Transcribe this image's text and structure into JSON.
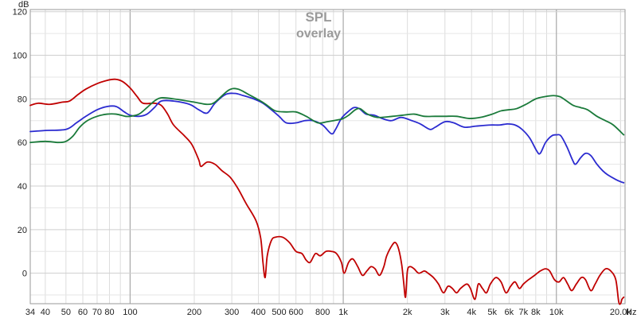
{
  "chart_data": {
    "type": "line",
    "title": "SPL",
    "subtitle": "overlay",
    "xlabel": "Hz",
    "ylabel": "dB",
    "x_scale": "log",
    "xlim": [
      34,
      21000
    ],
    "ylim": [
      -14,
      121
    ],
    "grid": true,
    "legend": "none",
    "x_tick_labels": [
      {
        "x": 34,
        "label": "34"
      },
      {
        "x": 40,
        "label": "40"
      },
      {
        "x": 50,
        "label": "50"
      },
      {
        "x": 60,
        "label": "60"
      },
      {
        "x": 70,
        "label": "70"
      },
      {
        "x": 80,
        "label": "80"
      },
      {
        "x": 100,
        "label": "100"
      },
      {
        "x": 200,
        "label": "200"
      },
      {
        "x": 300,
        "label": "300"
      },
      {
        "x": 400,
        "label": "400"
      },
      {
        "x": 500,
        "label": "500"
      },
      {
        "x": 600,
        "label": "600"
      },
      {
        "x": 800,
        "label": "800"
      },
      {
        "x": 1000,
        "label": "1k"
      },
      {
        "x": 2000,
        "label": "2k"
      },
      {
        "x": 3000,
        "label": "3k"
      },
      {
        "x": 4000,
        "label": "4k"
      },
      {
        "x": 5000,
        "label": "5k"
      },
      {
        "x": 6000,
        "label": "6k"
      },
      {
        "x": 7000,
        "label": "7k"
      },
      {
        "x": 8000,
        "label": "8k"
      },
      {
        "x": 10000,
        "label": "10k"
      },
      {
        "x": 20000,
        "label": "20.0k"
      }
    ],
    "y_ticks": [
      0,
      20,
      40,
      60,
      80,
      100,
      120
    ],
    "series": [
      {
        "color": "#c00000",
        "points": [
          [
            34,
            77
          ],
          [
            37,
            78
          ],
          [
            42,
            77.5
          ],
          [
            48,
            78.5
          ],
          [
            52,
            79
          ],
          [
            57,
            82
          ],
          [
            62,
            84.5
          ],
          [
            70,
            87
          ],
          [
            78,
            88.5
          ],
          [
            85,
            89
          ],
          [
            92,
            88
          ],
          [
            100,
            85
          ],
          [
            108,
            81
          ],
          [
            115,
            78
          ],
          [
            130,
            78
          ],
          [
            140,
            77
          ],
          [
            150,
            73
          ],
          [
            160,
            68
          ],
          [
            180,
            63
          ],
          [
            195,
            59
          ],
          [
            210,
            52
          ],
          [
            215,
            49
          ],
          [
            230,
            51
          ],
          [
            250,
            50
          ],
          [
            270,
            47
          ],
          [
            295,
            44
          ],
          [
            320,
            39
          ],
          [
            350,
            32
          ],
          [
            390,
            24
          ],
          [
            410,
            16
          ],
          [
            420,
            5
          ],
          [
            430,
            -2
          ],
          [
            440,
            8
          ],
          [
            460,
            15
          ],
          [
            480,
            16.5
          ],
          [
            520,
            16.5
          ],
          [
            560,
            14
          ],
          [
            600,
            10
          ],
          [
            640,
            9
          ],
          [
            670,
            6
          ],
          [
            700,
            5
          ],
          [
            740,
            9
          ],
          [
            780,
            8
          ],
          [
            830,
            10
          ],
          [
            880,
            10
          ],
          [
            930,
            9
          ],
          [
            980,
            5
          ],
          [
            1010,
            0
          ],
          [
            1060,
            5
          ],
          [
            1110,
            6.5
          ],
          [
            1170,
            3
          ],
          [
            1230,
            -1
          ],
          [
            1290,
            1
          ],
          [
            1350,
            3
          ],
          [
            1410,
            2
          ],
          [
            1480,
            -1
          ],
          [
            1550,
            3
          ],
          [
            1600,
            8
          ],
          [
            1700,
            13
          ],
          [
            1760,
            14
          ],
          [
            1820,
            11
          ],
          [
            1880,
            4
          ],
          [
            1920,
            -4
          ],
          [
            1960,
            -11
          ],
          [
            2000,
            1
          ],
          [
            2060,
            3
          ],
          [
            2150,
            2
          ],
          [
            2260,
            0
          ],
          [
            2400,
            1
          ],
          [
            2500,
            0
          ],
          [
            2650,
            -2
          ],
          [
            2800,
            -5
          ],
          [
            2950,
            -9
          ],
          [
            3100,
            -6
          ],
          [
            3250,
            -7
          ],
          [
            3400,
            -9
          ],
          [
            3550,
            -7
          ],
          [
            3800,
            -5
          ],
          [
            3950,
            -7
          ],
          [
            4150,
            -12
          ],
          [
            4300,
            -5
          ],
          [
            4500,
            -7
          ],
          [
            4700,
            -9
          ],
          [
            4900,
            -5
          ],
          [
            5200,
            -2
          ],
          [
            5500,
            -4
          ],
          [
            5800,
            -9
          ],
          [
            6100,
            -6
          ],
          [
            6400,
            -4
          ],
          [
            6700,
            -7
          ],
          [
            7000,
            -5
          ],
          [
            7400,
            -3
          ],
          [
            7900,
            -1
          ],
          [
            8400,
            1
          ],
          [
            8900,
            2
          ],
          [
            9300,
            1
          ],
          [
            9800,
            -3
          ],
          [
            10300,
            -4
          ],
          [
            10800,
            -2
          ],
          [
            11300,
            -5
          ],
          [
            11800,
            -8
          ],
          [
            12400,
            -5
          ],
          [
            13100,
            -2
          ],
          [
            13700,
            -3
          ],
          [
            14500,
            -8
          ],
          [
            15200,
            -5
          ],
          [
            16000,
            -1
          ],
          [
            17000,
            2
          ],
          [
            18000,
            1
          ],
          [
            19000,
            -3
          ],
          [
            19600,
            -13
          ],
          [
            20000,
            -14
          ],
          [
            20300,
            -12
          ],
          [
            20700,
            -11
          ]
        ]
      },
      {
        "color": "#2b2bd0",
        "points": [
          [
            34,
            65
          ],
          [
            40,
            65.5
          ],
          [
            50,
            66
          ],
          [
            56,
            69
          ],
          [
            62,
            72
          ],
          [
            70,
            75
          ],
          [
            78,
            76.5
          ],
          [
            86,
            76.5
          ],
          [
            94,
            74
          ],
          [
            100,
            72.5
          ],
          [
            110,
            72
          ],
          [
            120,
            73
          ],
          [
            130,
            76
          ],
          [
            140,
            79
          ],
          [
            160,
            79
          ],
          [
            190,
            77.5
          ],
          [
            210,
            75
          ],
          [
            230,
            73.5
          ],
          [
            250,
            78
          ],
          [
            280,
            82
          ],
          [
            310,
            82.5
          ],
          [
            340,
            81.5
          ],
          [
            380,
            80
          ],
          [
            420,
            78
          ],
          [
            460,
            75
          ],
          [
            500,
            72
          ],
          [
            540,
            69
          ],
          [
            600,
            69
          ],
          [
            660,
            70
          ],
          [
            720,
            70
          ],
          [
            800,
            68
          ],
          [
            880,
            64
          ],
          [
            920,
            66
          ],
          [
            980,
            71
          ],
          [
            1050,
            74
          ],
          [
            1120,
            76
          ],
          [
            1190,
            75.5
          ],
          [
            1280,
            73
          ],
          [
            1400,
            72.5
          ],
          [
            1520,
            71
          ],
          [
            1680,
            70
          ],
          [
            1870,
            71.5
          ],
          [
            2100,
            70
          ],
          [
            2300,
            68.5
          ],
          [
            2550,
            66
          ],
          [
            2700,
            67
          ],
          [
            3000,
            69.5
          ],
          [
            3300,
            69
          ],
          [
            3700,
            67
          ],
          [
            4200,
            67.5
          ],
          [
            4900,
            68
          ],
          [
            5400,
            68
          ],
          [
            5900,
            68.5
          ],
          [
            6400,
            68
          ],
          [
            6900,
            66
          ],
          [
            7500,
            62
          ],
          [
            8100,
            56
          ],
          [
            8400,
            55
          ],
          [
            8900,
            60
          ],
          [
            9500,
            63
          ],
          [
            10000,
            63.5
          ],
          [
            10500,
            63
          ],
          [
            11200,
            58
          ],
          [
            11900,
            52
          ],
          [
            12300,
            50
          ],
          [
            13000,
            53
          ],
          [
            13700,
            55
          ],
          [
            14500,
            54
          ],
          [
            15500,
            50
          ],
          [
            16500,
            47
          ],
          [
            17500,
            45
          ],
          [
            19000,
            43
          ],
          [
            20000,
            42
          ],
          [
            20700,
            41.5
          ]
        ]
      },
      {
        "color": "#1a7a3a",
        "points": [
          [
            34,
            60
          ],
          [
            40,
            60.5
          ],
          [
            46,
            60
          ],
          [
            50,
            60.5
          ],
          [
            54,
            63
          ],
          [
            58,
            67
          ],
          [
            63,
            70
          ],
          [
            70,
            72
          ],
          [
            78,
            73
          ],
          [
            86,
            73
          ],
          [
            95,
            72
          ],
          [
            100,
            72
          ],
          [
            110,
            73
          ],
          [
            120,
            76
          ],
          [
            130,
            79
          ],
          [
            140,
            80.5
          ],
          [
            160,
            80
          ],
          [
            200,
            78.5
          ],
          [
            230,
            77.5
          ],
          [
            250,
            78.5
          ],
          [
            290,
            84
          ],
          [
            320,
            84.5
          ],
          [
            360,
            82
          ],
          [
            410,
            79
          ],
          [
            440,
            77
          ],
          [
            480,
            74.5
          ],
          [
            540,
            74
          ],
          [
            600,
            74
          ],
          [
            670,
            72
          ],
          [
            760,
            69
          ],
          [
            840,
            69.5
          ],
          [
            960,
            70.5
          ],
          [
            1000,
            71
          ],
          [
            1060,
            72.5
          ],
          [
            1140,
            75
          ],
          [
            1200,
            75.5
          ],
          [
            1300,
            73
          ],
          [
            1450,
            71.5
          ],
          [
            1700,
            72
          ],
          [
            1900,
            72.5
          ],
          [
            2150,
            73
          ],
          [
            2400,
            72
          ],
          [
            2700,
            72
          ],
          [
            3000,
            72
          ],
          [
            3400,
            72
          ],
          [
            3900,
            71
          ],
          [
            4400,
            71.5
          ],
          [
            5000,
            73
          ],
          [
            5500,
            74.5
          ],
          [
            6000,
            75
          ],
          [
            6500,
            75.5
          ],
          [
            7200,
            77.5
          ],
          [
            8000,
            80
          ],
          [
            8800,
            81
          ],
          [
            9700,
            81.5
          ],
          [
            10400,
            81
          ],
          [
            11000,
            79.5
          ],
          [
            12000,
            77
          ],
          [
            13000,
            76
          ],
          [
            14000,
            75
          ],
          [
            15500,
            72
          ],
          [
            17000,
            70
          ],
          [
            18500,
            68
          ],
          [
            20700,
            63.5
          ]
        ]
      }
    ]
  }
}
